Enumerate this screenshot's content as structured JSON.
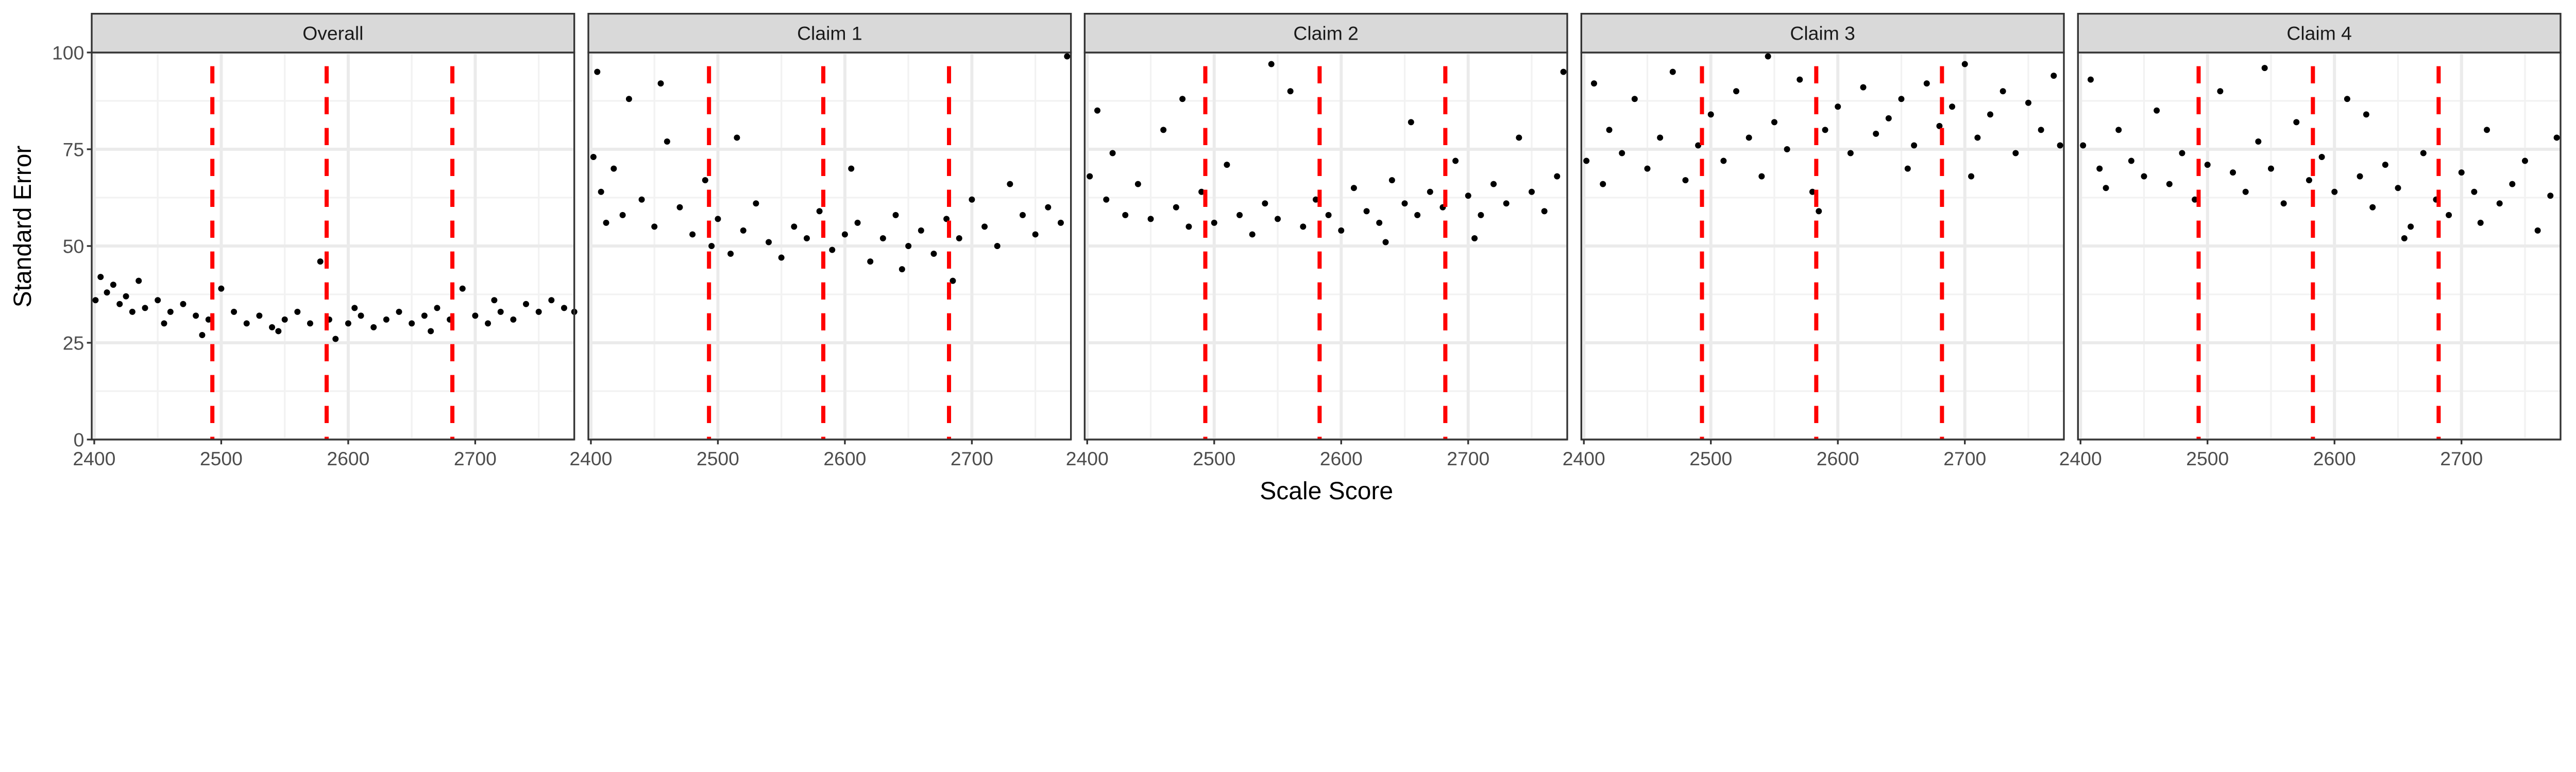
{
  "chart_data": {
    "type": "scatter",
    "xlabel": "Scale Score",
    "ylabel": "Standard Error",
    "xlim": [
      2398,
      2778
    ],
    "ylim": [
      0,
      100
    ],
    "x_ticks": [
      "2400",
      "2500",
      "2600",
      "2700"
    ],
    "y_ticks": [
      "0",
      "25",
      "50",
      "75",
      "100"
    ],
    "grid": true,
    "point_color": "#000000",
    "reference_lines": {
      "orientation": "vertical",
      "style": "dashed",
      "color": "#ff0000",
      "x": [
        2493,
        2583,
        2682
      ]
    },
    "panels": [
      {
        "title": "Overall",
        "points": [
          [
            2401,
            36
          ],
          [
            2405,
            42
          ],
          [
            2410,
            38
          ],
          [
            2415,
            40
          ],
          [
            2420,
            35
          ],
          [
            2425,
            37
          ],
          [
            2430,
            33
          ],
          [
            2435,
            41
          ],
          [
            2440,
            34
          ],
          [
            2450,
            36
          ],
          [
            2460,
            33
          ],
          [
            2470,
            35
          ],
          [
            2480,
            32
          ],
          [
            2485,
            27
          ],
          [
            2490,
            31
          ],
          [
            2500,
            39
          ],
          [
            2510,
            33
          ],
          [
            2520,
            30
          ],
          [
            2530,
            32
          ],
          [
            2540,
            29
          ],
          [
            2550,
            31
          ],
          [
            2560,
            33
          ],
          [
            2570,
            30
          ],
          [
            2578,
            46
          ],
          [
            2585,
            31
          ],
          [
            2590,
            26
          ],
          [
            2600,
            30
          ],
          [
            2610,
            32
          ],
          [
            2620,
            29
          ],
          [
            2630,
            31
          ],
          [
            2640,
            33
          ],
          [
            2650,
            30
          ],
          [
            2660,
            32
          ],
          [
            2670,
            34
          ],
          [
            2680,
            31
          ],
          [
            2690,
            39
          ],
          [
            2700,
            32
          ],
          [
            2710,
            30
          ],
          [
            2720,
            33
          ],
          [
            2730,
            31
          ],
          [
            2740,
            35
          ],
          [
            2750,
            33
          ],
          [
            2760,
            36
          ],
          [
            2770,
            34
          ],
          [
            2778,
            33
          ],
          [
            2545,
            28
          ],
          [
            2605,
            34
          ],
          [
            2665,
            28
          ],
          [
            2715,
            36
          ],
          [
            2455,
            30
          ]
        ]
      },
      {
        "title": "Claim 1",
        "points": [
          [
            2402,
            73
          ],
          [
            2405,
            95
          ],
          [
            2408,
            64
          ],
          [
            2412,
            56
          ],
          [
            2418,
            70
          ],
          [
            2425,
            58
          ],
          [
            2430,
            88
          ],
          [
            2440,
            62
          ],
          [
            2450,
            55
          ],
          [
            2460,
            77
          ],
          [
            2470,
            60
          ],
          [
            2480,
            53
          ],
          [
            2490,
            67
          ],
          [
            2495,
            50
          ],
          [
            2500,
            57
          ],
          [
            2510,
            48
          ],
          [
            2520,
            54
          ],
          [
            2530,
            61
          ],
          [
            2540,
            51
          ],
          [
            2550,
            47
          ],
          [
            2560,
            55
          ],
          [
            2570,
            52
          ],
          [
            2580,
            59
          ],
          [
            2590,
            49
          ],
          [
            2600,
            53
          ],
          [
            2610,
            56
          ],
          [
            2620,
            46
          ],
          [
            2630,
            52
          ],
          [
            2640,
            58
          ],
          [
            2650,
            50
          ],
          [
            2660,
            54
          ],
          [
            2670,
            48
          ],
          [
            2680,
            57
          ],
          [
            2690,
            52
          ],
          [
            2700,
            62
          ],
          [
            2710,
            55
          ],
          [
            2720,
            50
          ],
          [
            2730,
            66
          ],
          [
            2740,
            58
          ],
          [
            2750,
            53
          ],
          [
            2760,
            60
          ],
          [
            2770,
            56
          ],
          [
            2775,
            99
          ],
          [
            2515,
            78
          ],
          [
            2605,
            70
          ],
          [
            2455,
            92
          ],
          [
            2645,
            44
          ],
          [
            2685,
            41
          ]
        ]
      },
      {
        "title": "Claim 2",
        "points": [
          [
            2402,
            68
          ],
          [
            2408,
            85
          ],
          [
            2415,
            62
          ],
          [
            2420,
            74
          ],
          [
            2430,
            58
          ],
          [
            2440,
            66
          ],
          [
            2450,
            57
          ],
          [
            2460,
            80
          ],
          [
            2470,
            60
          ],
          [
            2480,
            55
          ],
          [
            2490,
            64
          ],
          [
            2500,
            56
          ],
          [
            2510,
            71
          ],
          [
            2520,
            58
          ],
          [
            2530,
            53
          ],
          [
            2540,
            61
          ],
          [
            2550,
            57
          ],
          [
            2560,
            90
          ],
          [
            2570,
            55
          ],
          [
            2580,
            62
          ],
          [
            2590,
            58
          ],
          [
            2600,
            54
          ],
          [
            2610,
            65
          ],
          [
            2620,
            59
          ],
          [
            2630,
            56
          ],
          [
            2640,
            67
          ],
          [
            2650,
            61
          ],
          [
            2660,
            58
          ],
          [
            2670,
            64
          ],
          [
            2680,
            60
          ],
          [
            2690,
            72
          ],
          [
            2700,
            63
          ],
          [
            2710,
            58
          ],
          [
            2720,
            66
          ],
          [
            2730,
            61
          ],
          [
            2740,
            78
          ],
          [
            2750,
            64
          ],
          [
            2760,
            59
          ],
          [
            2770,
            68
          ],
          [
            2775,
            95
          ],
          [
            2545,
            97
          ],
          [
            2635,
            51
          ],
          [
            2705,
            52
          ],
          [
            2475,
            88
          ],
          [
            2655,
            82
          ]
        ]
      },
      {
        "title": "Claim 3",
        "points": [
          [
            2402,
            72
          ],
          [
            2408,
            92
          ],
          [
            2415,
            66
          ],
          [
            2420,
            80
          ],
          [
            2430,
            74
          ],
          [
            2440,
            88
          ],
          [
            2450,
            70
          ],
          [
            2460,
            78
          ],
          [
            2470,
            95
          ],
          [
            2480,
            67
          ],
          [
            2490,
            76
          ],
          [
            2500,
            84
          ],
          [
            2510,
            72
          ],
          [
            2520,
            90
          ],
          [
            2530,
            78
          ],
          [
            2540,
            68
          ],
          [
            2550,
            82
          ],
          [
            2560,
            75
          ],
          [
            2570,
            93
          ],
          [
            2580,
            64
          ],
          [
            2590,
            80
          ],
          [
            2600,
            86
          ],
          [
            2610,
            74
          ],
          [
            2620,
            91
          ],
          [
            2630,
            79
          ],
          [
            2640,
            83
          ],
          [
            2650,
            88
          ],
          [
            2660,
            76
          ],
          [
            2670,
            92
          ],
          [
            2680,
            81
          ],
          [
            2690,
            86
          ],
          [
            2700,
            97
          ],
          [
            2710,
            78
          ],
          [
            2720,
            84
          ],
          [
            2730,
            90
          ],
          [
            2740,
            74
          ],
          [
            2750,
            87
          ],
          [
            2760,
            80
          ],
          [
            2770,
            94
          ],
          [
            2775,
            76
          ],
          [
            2585,
            59
          ],
          [
            2545,
            99
          ],
          [
            2655,
            70
          ],
          [
            2705,
            68
          ]
        ]
      },
      {
        "title": "Claim 4",
        "points": [
          [
            2402,
            76
          ],
          [
            2408,
            93
          ],
          [
            2415,
            70
          ],
          [
            2420,
            65
          ],
          [
            2430,
            80
          ],
          [
            2440,
            72
          ],
          [
            2450,
            68
          ],
          [
            2460,
            85
          ],
          [
            2470,
            66
          ],
          [
            2480,
            74
          ],
          [
            2490,
            62
          ],
          [
            2500,
            71
          ],
          [
            2510,
            90
          ],
          [
            2520,
            69
          ],
          [
            2530,
            64
          ],
          [
            2540,
            77
          ],
          [
            2550,
            70
          ],
          [
            2560,
            61
          ],
          [
            2570,
            82
          ],
          [
            2580,
            67
          ],
          [
            2590,
            73
          ],
          [
            2600,
            64
          ],
          [
            2610,
            88
          ],
          [
            2620,
            68
          ],
          [
            2630,
            60
          ],
          [
            2640,
            71
          ],
          [
            2650,
            65
          ],
          [
            2660,
            55
          ],
          [
            2670,
            74
          ],
          [
            2680,
            62
          ],
          [
            2690,
            58
          ],
          [
            2700,
            69
          ],
          [
            2710,
            64
          ],
          [
            2720,
            80
          ],
          [
            2730,
            61
          ],
          [
            2740,
            66
          ],
          [
            2750,
            72
          ],
          [
            2760,
            54
          ],
          [
            2770,
            63
          ],
          [
            2775,
            78
          ],
          [
            2545,
            96
          ],
          [
            2655,
            52
          ],
          [
            2625,
            84
          ],
          [
            2715,
            56
          ]
        ]
      }
    ]
  }
}
